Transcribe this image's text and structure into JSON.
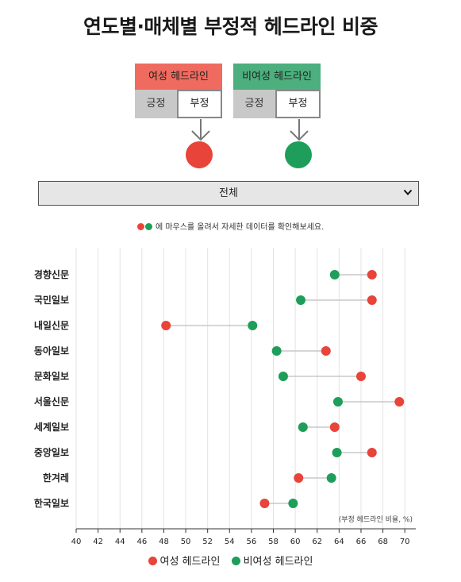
{
  "title": "연도별·매체별 부정적 헤드라인 비중",
  "legend_boxes": {
    "female": {
      "label": "여성 헤드라인",
      "positive": "긍정",
      "negative": "부정",
      "color": "#ef6b5f"
    },
    "nonfemale": {
      "label": "비여성 헤드라인",
      "positive": "긍정",
      "negative": "부정",
      "color": "#4caf7d"
    }
  },
  "colors": {
    "female_dot": "#e8443a",
    "nonfemale_dot": "#1e9e5a",
    "connector": "#c8c8c8",
    "grid": "#e3e3e3"
  },
  "filter": {
    "selected": "전체",
    "icon": "chevron-down-icon"
  },
  "hint": "에 마우스를 올려서 자세한 데이터를 확인해보세요.",
  "chart_data": {
    "type": "dumbbell",
    "categories": [
      "경향신문",
      "국민일보",
      "내일신문",
      "동아일보",
      "문화일보",
      "서울신문",
      "세계일보",
      "중앙일보",
      "한겨레",
      "한국일보"
    ],
    "series": [
      {
        "name": "여성 헤드라인",
        "values": [
          67.0,
          67.0,
          48.2,
          62.8,
          66.0,
          69.5,
          63.6,
          67.0,
          60.3,
          57.2
        ]
      },
      {
        "name": "비여성 헤드라인",
        "values": [
          63.6,
          60.5,
          56.1,
          58.3,
          58.9,
          63.9,
          60.7,
          63.8,
          63.3,
          59.8
        ]
      }
    ],
    "xlim": [
      40,
      71
    ],
    "xticks": [
      40,
      42,
      44,
      46,
      48,
      50,
      52,
      54,
      56,
      58,
      60,
      62,
      64,
      66,
      68,
      70
    ],
    "unit_note": "(부정 헤드라인 비율, %)",
    "grid": true,
    "legend_position": "bottom"
  }
}
